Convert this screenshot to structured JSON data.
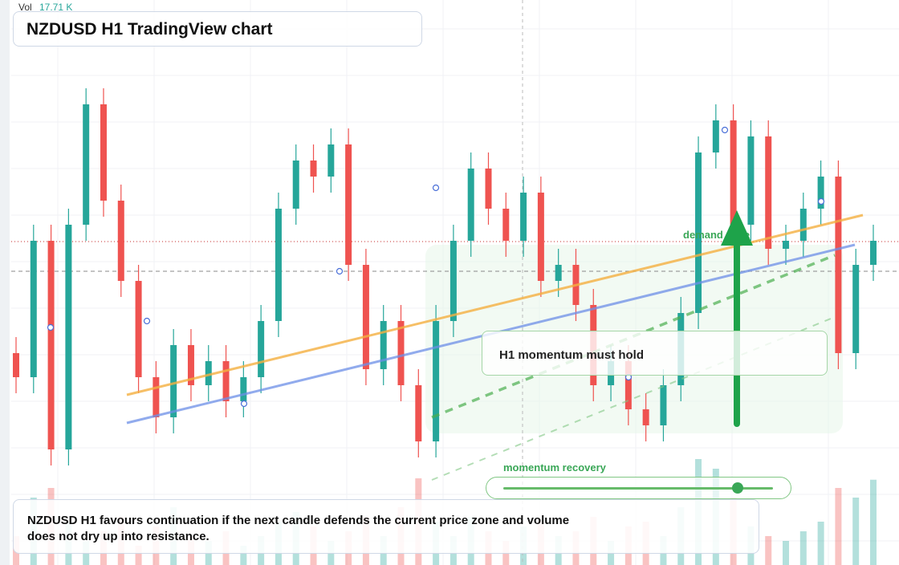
{
  "chart_data": {
    "type": "candlestick",
    "title": "NZDUSD H1 TradingView chart",
    "volume_label": "Vol",
    "volume_value_label": "17.71 K",
    "annotation": "H1 momentum must hold",
    "zone_label": "demand zone",
    "slider_label": "momentum recovery",
    "caption": "NZDUSD H1 favours continuation if the next candle defends the current price zone and volume does not dry up into resistance.",
    "ylim": [
      0.58,
      0.5976
    ],
    "up_color": "#26a69a",
    "down_color": "#ef5350",
    "candles": [
      [
        0.5866,
        0.5871,
        0.58535,
        0.58585
      ],
      [
        0.58585,
        0.5906,
        0.58535,
        0.5901
      ],
      [
        0.5901,
        0.5906,
        0.5831,
        0.5836
      ],
      [
        0.5836,
        0.5911,
        0.5831,
        0.5906
      ],
      [
        0.5906,
        0.59485,
        0.5901,
        0.59435
      ],
      [
        0.59435,
        0.59485,
        0.59085,
        0.59135
      ],
      [
        0.59135,
        0.59185,
        0.58835,
        0.58885
      ],
      [
        0.58885,
        0.58935,
        0.58535,
        0.58585
      ],
      [
        0.58585,
        0.58635,
        0.5841,
        0.5846
      ],
      [
        0.5846,
        0.58735,
        0.5841,
        0.58685
      ],
      [
        0.58685,
        0.58735,
        0.5851,
        0.5856
      ],
      [
        0.5856,
        0.58685,
        0.5851,
        0.58635
      ],
      [
        0.58635,
        0.58685,
        0.5846,
        0.5851
      ],
      [
        0.5851,
        0.58635,
        0.5846,
        0.58585
      ],
      [
        0.58585,
        0.5881,
        0.58535,
        0.5876
      ],
      [
        0.5876,
        0.5916,
        0.5871,
        0.5911
      ],
      [
        0.5911,
        0.5931,
        0.5906,
        0.5926
      ],
      [
        0.5926,
        0.5931,
        0.5916,
        0.5921
      ],
      [
        0.5921,
        0.5936,
        0.5916,
        0.5931
      ],
      [
        0.5931,
        0.5936,
        0.58885,
        0.58935
      ],
      [
        0.58935,
        0.58985,
        0.5856,
        0.5861
      ],
      [
        0.5861,
        0.5881,
        0.5856,
        0.5876
      ],
      [
        0.5876,
        0.5881,
        0.5851,
        0.5856
      ],
      [
        0.5856,
        0.5861,
        0.58335,
        0.58385
      ],
      [
        0.58385,
        0.5881,
        0.58335,
        0.5876
      ],
      [
        0.5876,
        0.5906,
        0.5871,
        0.5901
      ],
      [
        0.5901,
        0.59285,
        0.5896,
        0.59235
      ],
      [
        0.59235,
        0.59285,
        0.5906,
        0.5911
      ],
      [
        0.5911,
        0.5916,
        0.5896,
        0.5901
      ],
      [
        0.5901,
        0.5921,
        0.5896,
        0.5916
      ],
      [
        0.5916,
        0.5921,
        0.58835,
        0.58885
      ],
      [
        0.58885,
        0.58985,
        0.58835,
        0.58935
      ],
      [
        0.58935,
        0.58985,
        0.5876,
        0.5881
      ],
      [
        0.5881,
        0.5886,
        0.5851,
        0.5856
      ],
      [
        0.5856,
        0.58685,
        0.5851,
        0.58635
      ],
      [
        0.58635,
        0.58685,
        0.58435,
        0.58485
      ],
      [
        0.58485,
        0.58535,
        0.58385,
        0.58435
      ],
      [
        0.58435,
        0.5861,
        0.58385,
        0.5856
      ],
      [
        0.5856,
        0.58835,
        0.5851,
        0.58785
      ],
      [
        0.58785,
        0.59335,
        0.58735,
        0.59285
      ],
      [
        0.59285,
        0.59435,
        0.59235,
        0.59385
      ],
      [
        0.59385,
        0.59435,
        0.5901,
        0.5906
      ],
      [
        0.5906,
        0.59385,
        0.5901,
        0.59335
      ],
      [
        0.59335,
        0.59385,
        0.58935,
        0.58985
      ],
      [
        0.58985,
        0.5906,
        0.58935,
        0.5901
      ],
      [
        0.5901,
        0.5916,
        0.5896,
        0.5911
      ],
      [
        0.5911,
        0.5926,
        0.5906,
        0.5921
      ],
      [
        0.5921,
        0.5926,
        0.5861,
        0.5866
      ],
      [
        0.5866,
        0.58985,
        0.5861,
        0.58935
      ],
      [
        0.58935,
        0.5906,
        0.58885,
        0.5901
      ]
    ],
    "volumes": [
      6,
      14,
      16,
      9,
      5,
      7,
      10,
      4,
      8,
      12,
      6,
      5,
      7,
      4,
      6,
      9,
      11,
      8,
      5,
      7,
      10,
      6,
      12,
      18,
      9,
      6,
      10,
      7,
      5,
      8,
      9,
      6,
      7,
      10,
      5,
      8,
      9,
      6,
      12,
      22,
      20,
      14,
      8,
      6,
      5,
      7,
      9,
      16,
      14,
      17.71
    ]
  }
}
